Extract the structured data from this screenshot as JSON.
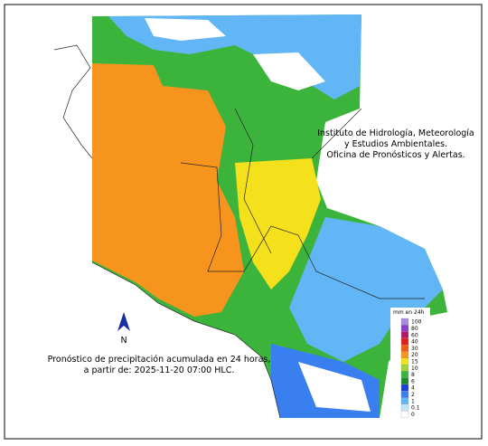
{
  "institute": {
    "lines": [
      "Instituto de Hidrología, Meteorología",
      "y Estudios Ambientales.",
      "Oficina de Pronósticos y Alertas."
    ]
  },
  "forecast": {
    "lines": [
      "Pronóstico de precipitación acumulada en 24 horas,",
      "a partir de: 2025-11-20 07:00 HLC."
    ]
  },
  "north": "N",
  "legend": {
    "title": "mm en 24h",
    "levels": [
      {
        "label": 100,
        "color": "#a88be0"
      },
      {
        "label": 80,
        "color": "#8b3fc8"
      },
      {
        "label": 60,
        "color": "#b0186b"
      },
      {
        "label": 40,
        "color": "#e0201a"
      },
      {
        "label": 30,
        "color": "#f05a14"
      },
      {
        "label": 20,
        "color": "#f7941d"
      },
      {
        "label": 15,
        "color": "#f5e11b"
      },
      {
        "label": 10,
        "color": "#9fd43a"
      },
      {
        "label": 8,
        "color": "#3cb43c"
      },
      {
        "label": 6,
        "color": "#1e8a2e"
      },
      {
        "label": 4,
        "color": "#1d3fd6"
      },
      {
        "label": 2,
        "color": "#3a7ff0"
      },
      {
        "label": 1,
        "color": "#62b6f5"
      },
      {
        "label": 0.1,
        "color": "#bfe6fa"
      },
      {
        "label": 0,
        "color": "#ffffff"
      }
    ]
  }
}
